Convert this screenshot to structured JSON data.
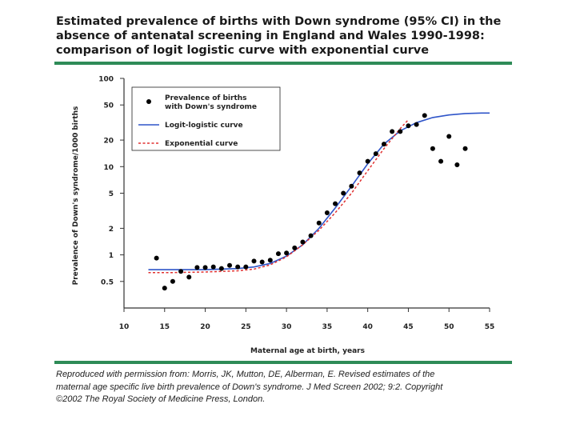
{
  "title_lines": [
    "Estimated prevalence of births with Down syndrome (95% CI) in the",
    "absence of antenatal screening in England and Wales 1990-1998:",
    "comparison of logit logistic curve with exponential curve"
  ],
  "caption_lines": [
    "Reproduced with permission from: Morris, JK, Mutton, DE, Alberman, E. Revised estimates of the",
    "maternal age specific live birth prevalence of Down's syndrome. J Med Screen 2002; 9:2. Copyright",
    "©2002 The Royal Society of Medicine Press, London."
  ],
  "colors": {
    "rule": "#2e8b57",
    "points": "#000000",
    "logit_line": "#2f55c9",
    "exp_line": "#e03030"
  },
  "chart_data": {
    "type": "scatter",
    "xlabel": "Maternal age at birth, years",
    "ylabel": "Prevalence of Down's syndrome/1000 births",
    "xlim": [
      10,
      55
    ],
    "ylim": [
      0.25,
      100
    ],
    "yscale": "log",
    "xticks": [
      10,
      15,
      20,
      25,
      30,
      35,
      40,
      45,
      50,
      55
    ],
    "yticks": [
      0.5,
      1,
      2,
      5,
      10,
      20,
      50,
      100
    ],
    "ytick_labels": [
      "0.5",
      "1",
      "2",
      "5",
      "10",
      "20",
      "50",
      "100"
    ],
    "legend": {
      "placement": "top-left",
      "points_label_lines": [
        "Prevalence of births",
        "with Down's syndrome"
      ],
      "logit_label": "Logit-logistic curve",
      "exp_label": "Exponential curve"
    },
    "points": [
      {
        "x": 14,
        "y": 0.92
      },
      {
        "x": 15,
        "y": 0.42
      },
      {
        "x": 16,
        "y": 0.5
      },
      {
        "x": 17,
        "y": 0.65
      },
      {
        "x": 18,
        "y": 0.56
      },
      {
        "x": 19,
        "y": 0.72
      },
      {
        "x": 20,
        "y": 0.72
      },
      {
        "x": 21,
        "y": 0.73
      },
      {
        "x": 22,
        "y": 0.7
      },
      {
        "x": 23,
        "y": 0.76
      },
      {
        "x": 24,
        "y": 0.73
      },
      {
        "x": 25,
        "y": 0.73
      },
      {
        "x": 26,
        "y": 0.85
      },
      {
        "x": 27,
        "y": 0.83
      },
      {
        "x": 28,
        "y": 0.87
      },
      {
        "x": 29,
        "y": 1.03
      },
      {
        "x": 30,
        "y": 1.05
      },
      {
        "x": 31,
        "y": 1.2
      },
      {
        "x": 32,
        "y": 1.4
      },
      {
        "x": 33,
        "y": 1.65
      },
      {
        "x": 34,
        "y": 2.3
      },
      {
        "x": 35,
        "y": 3.0
      },
      {
        "x": 36,
        "y": 3.8
      },
      {
        "x": 37,
        "y": 5.0
      },
      {
        "x": 38,
        "y": 6.0
      },
      {
        "x": 39,
        "y": 8.5
      },
      {
        "x": 40,
        "y": 11.5
      },
      {
        "x": 41,
        "y": 14.0
      },
      {
        "x": 42,
        "y": 18.0
      },
      {
        "x": 43,
        "y": 25.0
      },
      {
        "x": 44,
        "y": 25.0
      },
      {
        "x": 45,
        "y": 29.0
      },
      {
        "x": 46,
        "y": 30.0
      },
      {
        "x": 47,
        "y": 38.0
      },
      {
        "x": 48,
        "y": 16.0
      },
      {
        "x": 49,
        "y": 11.5
      },
      {
        "x": 50,
        "y": 22.0
      },
      {
        "x": 51,
        "y": 10.5
      },
      {
        "x": 52,
        "y": 16.0
      }
    ],
    "series": [
      {
        "name": "Logit-logistic curve",
        "x": [
          13,
          16,
          20,
          24,
          26,
          28,
          30,
          32,
          34,
          36,
          38,
          40,
          42,
          44,
          46,
          48,
          50,
          52,
          54,
          55
        ],
        "y": [
          0.68,
          0.68,
          0.68,
          0.7,
          0.73,
          0.8,
          0.97,
          1.3,
          2.0,
          3.4,
          6.0,
          10.8,
          18.0,
          25.5,
          31.5,
          36.0,
          38.5,
          40.0,
          40.5,
          40.5
        ]
      },
      {
        "name": "Exponential curve",
        "x": [
          13,
          16,
          20,
          24,
          26,
          28,
          30,
          32,
          34,
          36,
          38,
          40,
          42,
          44,
          45
        ],
        "y": [
          0.63,
          0.63,
          0.64,
          0.66,
          0.69,
          0.77,
          0.95,
          1.3,
          1.9,
          3.0,
          5.0,
          9.0,
          16.0,
          27.0,
          34.0
        ]
      }
    ]
  }
}
